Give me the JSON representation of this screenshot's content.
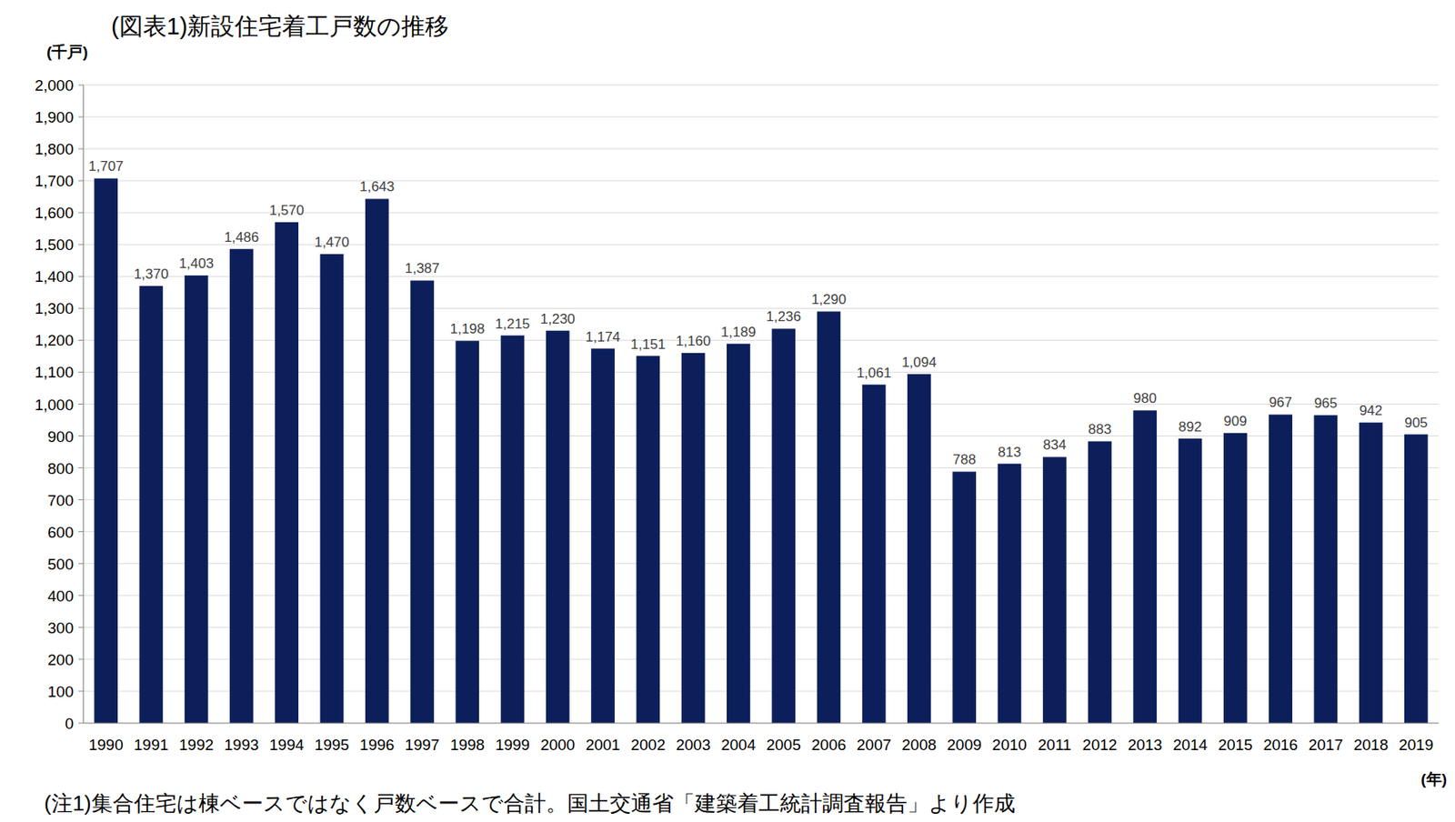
{
  "chart_data": {
    "type": "bar",
    "title": "(図表1)新設住宅着工戸数の推移",
    "y_label": "(千戸)",
    "x_label": "(年)",
    "note": "(注1)集合住宅は棟ベースではなく戸数ベースで合計。国土交通省「建築着工統計調査報告」より作成",
    "categories": [
      "1990",
      "1991",
      "1992",
      "1993",
      "1994",
      "1995",
      "1996",
      "1997",
      "1998",
      "1999",
      "2000",
      "2001",
      "2002",
      "2003",
      "2004",
      "2005",
      "2006",
      "2007",
      "2008",
      "2009",
      "2010",
      "2011",
      "2012",
      "2013",
      "2014",
      "2015",
      "2016",
      "2017",
      "2018",
      "2019"
    ],
    "values": [
      1707,
      1370,
      1403,
      1486,
      1570,
      1470,
      1643,
      1387,
      1198,
      1215,
      1230,
      1174,
      1151,
      1160,
      1189,
      1236,
      1290,
      1061,
      1094,
      788,
      813,
      834,
      883,
      980,
      892,
      909,
      967,
      965,
      942,
      905
    ],
    "value_labels": [
      "1,707",
      "1,370",
      "1,403",
      "1,486",
      "1,570",
      "1,470",
      "1,643",
      "1,387",
      "1,198",
      "1,215",
      "1,230",
      "1,174",
      "1,151",
      "1,160",
      "1,189",
      "1,236",
      "1,290",
      "1,061",
      "1,094",
      "788",
      "813",
      "834",
      "883",
      "980",
      "892",
      "909",
      "967",
      "965",
      "942",
      "905"
    ],
    "color": "#0c1f5b",
    "ylim": [
      0,
      2000
    ],
    "yticks": [
      0,
      100,
      200,
      300,
      400,
      500,
      600,
      700,
      800,
      900,
      {
        "value": 1000,
        "label": "1,000"
      },
      {
        "value": 1100,
        "label": "1,100"
      },
      {
        "value": 1200,
        "label": "1,200"
      },
      {
        "value": 1300,
        "label": "1,300"
      },
      {
        "value": 1400,
        "label": "1,400"
      },
      {
        "value": 1500,
        "label": "1,500"
      },
      {
        "value": 1600,
        "label": "1,600"
      },
      {
        "value": 1700,
        "label": "1,700"
      },
      {
        "value": 1800,
        "label": "1,800"
      },
      {
        "value": 1900,
        "label": "1,900"
      },
      {
        "value": 2000,
        "label": "2,000"
      }
    ],
    "grid": true,
    "data_labels": true
  }
}
